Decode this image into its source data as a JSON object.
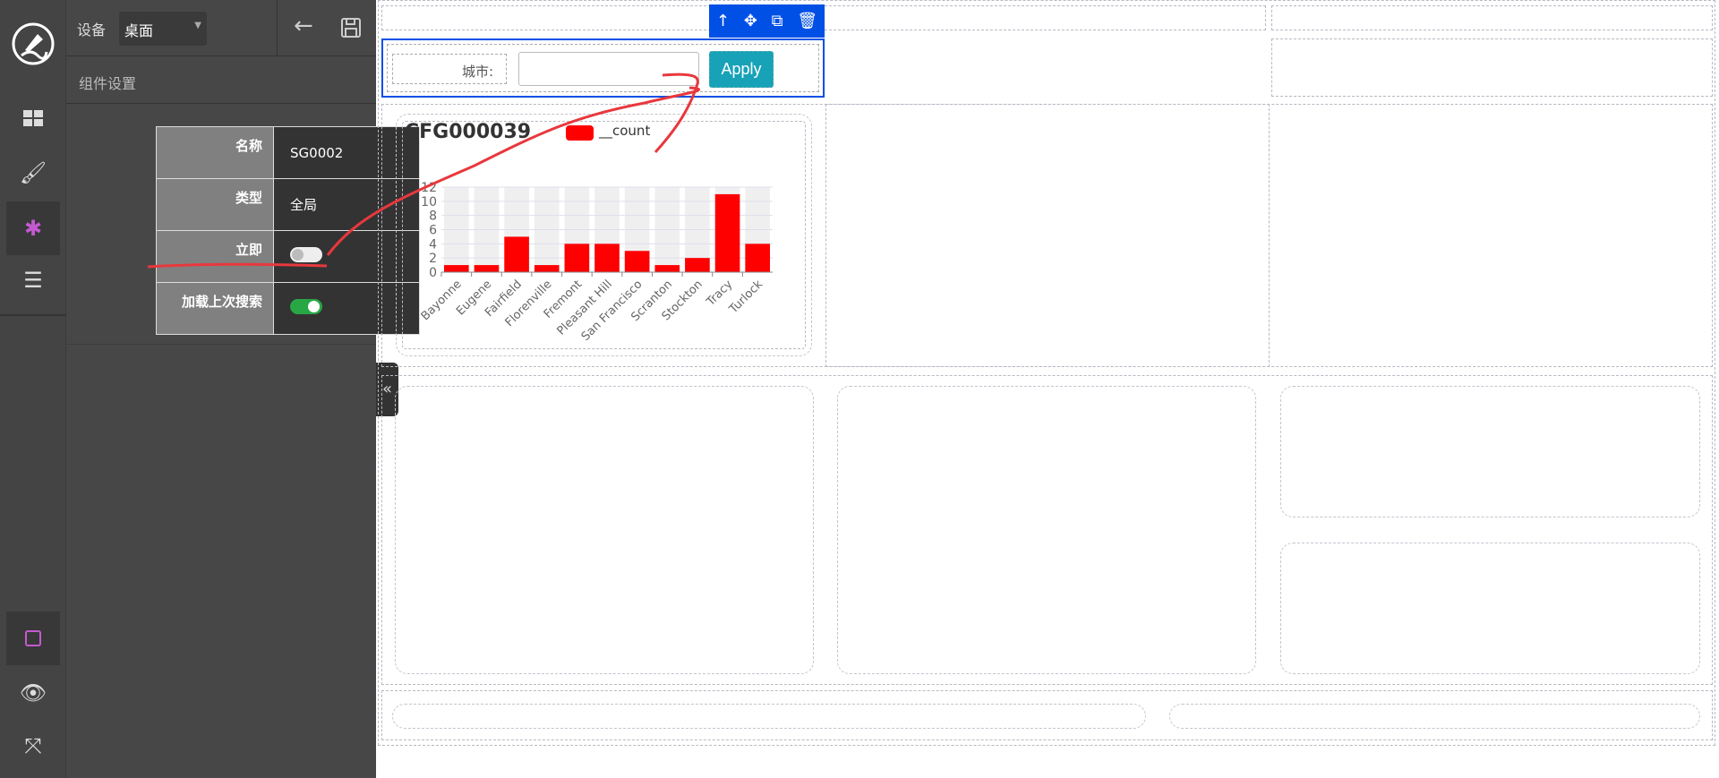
{
  "header": {
    "device_label": "设备",
    "device_value": "桌面"
  },
  "panel": {
    "title": "组件设置",
    "rows": [
      {
        "label": "名称",
        "value": "SG0002"
      },
      {
        "label": "类型",
        "value": "全局"
      },
      {
        "label": "立即",
        "toggle": false
      },
      {
        "label": "加载上次搜索",
        "toggle": true
      }
    ]
  },
  "filter": {
    "label": "城市:",
    "input_value": "",
    "apply_label": "Apply"
  },
  "colors": {
    "accent": "#17a2b8",
    "selection": "#0050e6",
    "bar": "#ff0000",
    "active_icon": "#c45ad0",
    "toggle_on": "#28a745"
  },
  "chart_data": {
    "type": "bar",
    "title": "CFG000039",
    "legend": [
      "__count"
    ],
    "legend_position": "top",
    "categories": [
      "Bayonne",
      "Eugene",
      "Fairfield",
      "Florenville",
      "Fremont",
      "Pleasant Hill",
      "San Francisco",
      "Scranton",
      "Stockton",
      "Tracy",
      "Turlock"
    ],
    "series": [
      {
        "name": "__count",
        "values": [
          1,
          1,
          5,
          1,
          4,
          4,
          3,
          1,
          2,
          11,
          4
        ]
      }
    ],
    "ylim": [
      0,
      12
    ],
    "yticks": [
      0,
      2,
      4,
      6,
      8,
      10,
      12
    ],
    "grid": true
  }
}
